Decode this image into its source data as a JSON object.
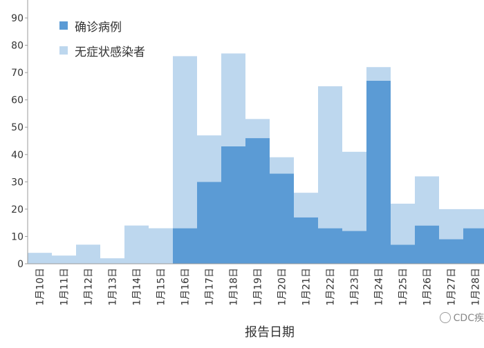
{
  "chart_data": {
    "type": "bar",
    "stacked": true,
    "categories": [
      "1月10日",
      "1月11日",
      "1月12日",
      "1月13日",
      "1月14日",
      "1月15日",
      "1月16日",
      "1月17日",
      "1月18日",
      "1月19日",
      "1月20日",
      "1月21日",
      "1月22日",
      "1月23日",
      "1月24日",
      "1月25日",
      "1月26日",
      "1月27日",
      "1月28日"
    ],
    "series": [
      {
        "name": "确诊病例",
        "color": "#5b9bd5",
        "values": [
          0,
          0,
          0,
          0,
          0,
          0,
          13,
          30,
          43,
          46,
          33,
          17,
          13,
          12,
          67,
          7,
          14,
          9,
          13
        ]
      },
      {
        "name": "无症状感染者",
        "color": "#bdd7ee",
        "values": [
          4,
          3,
          7,
          2,
          14,
          13,
          63,
          17,
          34,
          7,
          6,
          9,
          52,
          29,
          5,
          15,
          18,
          11,
          7
        ]
      }
    ],
    "xlabel": "报告日期",
    "ylabel": "",
    "ylim": [
      0,
      90
    ],
    "yticks": [
      0,
      10,
      20,
      30,
      40,
      50,
      60,
      70,
      80,
      90
    ],
    "legend_position": "top-left",
    "grid": false
  },
  "watermark": {
    "text": "CDC疾",
    "icon": "wechat-icon"
  }
}
